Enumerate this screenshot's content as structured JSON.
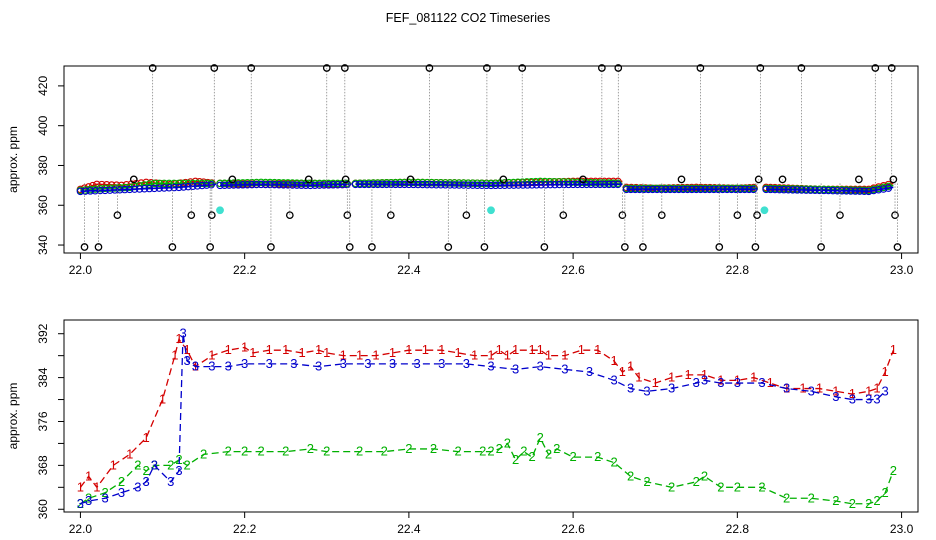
{
  "chart_data": {
    "title": "FEF_081122  CO2 Timeseries",
    "panels": [
      {
        "type": "scatter",
        "ylabel": "approx. ppm",
        "xlim": [
          21.98,
          23.02
        ],
        "ylim": [
          336,
          430
        ],
        "xticks": [
          22.0,
          22.2,
          22.4,
          22.6,
          22.8,
          23.0
        ],
        "xtick_labels": [
          "22.0",
          "22.2",
          "22.4",
          "22.6",
          "22.8",
          "23.0"
        ],
        "yticks": [
          340,
          360,
          380,
          400,
          420
        ],
        "ytick_labels": [
          "340",
          "360",
          "380",
          "400",
          "420"
        ],
        "series": [
          {
            "name": "1",
            "color": "#d40000",
            "segments": [
              {
                "x": [
                  22.0,
                  22.02,
                  22.05,
                  22.08,
                  22.11,
                  22.14,
                  22.165
                ],
                "y": [
                  368,
                  370.5,
                  370,
                  371.5,
                  370.5,
                  372,
                  371
                ]
              },
              {
                "x": [
                  22.17,
                  22.22,
                  22.28,
                  22.32,
                  22.33
                ],
                "y": [
                  371,
                  370.5,
                  371,
                  370.5,
                  371
                ]
              },
              {
                "x": [
                  22.335,
                  22.4,
                  22.5,
                  22.6,
                  22.66
                ],
                "y": [
                  371,
                  371.5,
                  371,
                  372,
                  372
                ]
              },
              {
                "x": [
                  22.665,
                  22.7,
                  22.75,
                  22.8,
                  22.825
                ],
                "y": [
                  369,
                  368.5,
                  369,
                  368.5,
                  369
                ]
              },
              {
                "x": [
                  22.835,
                  22.9,
                  22.96,
                  22.99
                ],
                "y": [
                  369,
                  368,
                  368,
                  371
                ]
              }
            ]
          },
          {
            "name": "2",
            "color": "#00b000",
            "segments": [
              {
                "x": [
                  22.0,
                  22.03,
                  22.06,
                  22.09,
                  22.12,
                  22.165
                ],
                "y": [
                  367.5,
                  368.5,
                  369,
                  371,
                  371,
                  371
                ]
              },
              {
                "x": [
                  22.17,
                  22.22,
                  22.28,
                  22.33
                ],
                "y": [
                  371,
                  371.5,
                  371,
                  371
                ]
              },
              {
                "x": [
                  22.335,
                  22.4,
                  22.5,
                  22.56,
                  22.66
                ],
                "y": [
                  371,
                  371.5,
                  371,
                  372,
                  371
                ]
              },
              {
                "x": [
                  22.665,
                  22.75,
                  22.825
                ],
                "y": [
                  368.5,
                  368.5,
                  368.5
                ]
              },
              {
                "x": [
                  22.835,
                  22.9,
                  22.96,
                  22.99
                ],
                "y": [
                  368.5,
                  368,
                  367.5,
                  370
                ]
              }
            ]
          },
          {
            "name": "3",
            "color": "#0000cc",
            "segments": [
              {
                "x": [
                  22.0,
                  22.03,
                  22.06,
                  22.09,
                  22.12,
                  22.165
                ],
                "y": [
                  367,
                  367.5,
                  368,
                  368.5,
                  369,
                  370.5
                ]
              },
              {
                "x": [
                  22.17,
                  22.22,
                  22.28,
                  22.33
                ],
                "y": [
                  370,
                  370.5,
                  370,
                  370.5
                ]
              },
              {
                "x": [
                  22.335,
                  22.4,
                  22.5,
                  22.6,
                  22.66
                ],
                "y": [
                  370.5,
                  370.5,
                  370,
                  370.5,
                  370.5
                ]
              },
              {
                "x": [
                  22.665,
                  22.75,
                  22.825
                ],
                "y": [
                  368,
                  368,
                  368
                ]
              },
              {
                "x": [
                  22.835,
                  22.9,
                  22.96,
                  22.99
                ],
                "y": [
                  368,
                  367.5,
                  367,
                  369
                ]
              }
            ]
          },
          {
            "name": "calibration",
            "color": "#000000",
            "points": [
              [
                22.005,
                339
              ],
              [
                22.022,
                339
              ],
              [
                22.045,
                355
              ],
              [
                22.065,
                373
              ],
              [
                22.088,
                429
              ],
              [
                22.112,
                339
              ],
              [
                22.135,
                355
              ],
              [
                22.158,
                339
              ],
              [
                22.163,
                429
              ],
              [
                22.16,
                355
              ],
              [
                22.185,
                373
              ],
              [
                22.208,
                429
              ],
              [
                22.232,
                339
              ],
              [
                22.255,
                355
              ],
              [
                22.278,
                373
              ],
              [
                22.3,
                429
              ],
              [
                22.322,
                429
              ],
              [
                22.323,
                373
              ],
              [
                22.325,
                355
              ],
              [
                22.328,
                339
              ],
              [
                22.355,
                339
              ],
              [
                22.378,
                355
              ],
              [
                22.402,
                373
              ],
              [
                22.425,
                429
              ],
              [
                22.448,
                339
              ],
              [
                22.47,
                355
              ],
              [
                22.492,
                339
              ],
              [
                22.495,
                429
              ],
              [
                22.515,
                373
              ],
              [
                22.538,
                429
              ],
              [
                22.565,
                339
              ],
              [
                22.588,
                355
              ],
              [
                22.612,
                373
              ],
              [
                22.635,
                429
              ],
              [
                22.655,
                429
              ],
              [
                22.66,
                355
              ],
              [
                22.663,
                339
              ],
              [
                22.685,
                339
              ],
              [
                22.708,
                355
              ],
              [
                22.732,
                373
              ],
              [
                22.755,
                429
              ],
              [
                22.778,
                339
              ],
              [
                22.8,
                355
              ],
              [
                22.822,
                339
              ],
              [
                22.824,
                355
              ],
              [
                22.826,
                373
              ],
              [
                22.828,
                429
              ],
              [
                22.855,
                373
              ],
              [
                22.878,
                429
              ],
              [
                22.902,
                339
              ],
              [
                22.925,
                355
              ],
              [
                22.948,
                373
              ],
              [
                22.968,
                429
              ],
              [
                22.988,
                429
              ],
              [
                22.99,
                373
              ],
              [
                22.992,
                355
              ],
              [
                22.995,
                339
              ]
            ]
          },
          {
            "name": "reference",
            "color": "#40e0d0",
            "points": [
              [
                22.17,
                357.5
              ],
              [
                22.5,
                357.5
              ],
              [
                22.833,
                357.5
              ]
            ]
          }
        ]
      },
      {
        "type": "line",
        "ylabel": "approx. ppm",
        "xlim": [
          21.98,
          23.02
        ],
        "ylim": [
          359.5,
          394.5
        ],
        "xticks": [
          22.0,
          22.2,
          22.4,
          22.6,
          22.8,
          23.0
        ],
        "xtick_labels": [
          "22.0",
          "22.2",
          "22.4",
          "22.6",
          "22.8",
          "23.0"
        ],
        "yticks": [
          360,
          364,
          368,
          372,
          376,
          380,
          384,
          388,
          392
        ],
        "ytick_labels": [
          "360",
          "364",
          "368",
          "372",
          "376",
          "380",
          "384",
          "388",
          "392"
        ],
        "series": [
          {
            "name": "1",
            "color": "#d40000",
            "x": [
              22.0,
              22.01,
              22.02,
              22.04,
              22.06,
              22.08,
              22.1,
              22.115,
              22.12,
              22.13,
              22.14,
              22.16,
              22.18,
              22.2,
              22.21,
              22.23,
              22.25,
              22.27,
              22.29,
              22.3,
              22.32,
              22.34,
              22.36,
              22.38,
              22.4,
              22.42,
              22.44,
              22.46,
              22.48,
              22.5,
              22.51,
              22.52,
              22.53,
              22.55,
              22.56,
              22.57,
              22.59,
              22.61,
              22.63,
              22.65,
              22.66,
              22.67,
              22.68,
              22.7,
              22.72,
              22.74,
              22.76,
              22.78,
              22.8,
              22.82,
              22.84,
              22.86,
              22.88,
              22.9,
              22.92,
              22.94,
              22.96,
              22.97,
              22.98,
              22.99
            ],
            "y": [
              364,
              366,
              364,
              368,
              370,
              373,
              380,
              388,
              391,
              389,
              386,
              388,
              389,
              389.5,
              388.5,
              389,
              389,
              388.5,
              389,
              388.5,
              388,
              388,
              388,
              388.5,
              389,
              389,
              389,
              388.5,
              388,
              388,
              389,
              388,
              389,
              389,
              389,
              388,
              388,
              389,
              389,
              387,
              385,
              386,
              384,
              383,
              384,
              384.5,
              384.5,
              383.5,
              383.5,
              384,
              383,
              382,
              382,
              382,
              381.5,
              381,
              381.5,
              382,
              385,
              389
            ]
          },
          {
            "name": "2",
            "color": "#00b000",
            "x": [
              22.0,
              22.01,
              22.03,
              22.05,
              22.07,
              22.08,
              22.09,
              22.11,
              22.12,
              22.13,
              22.15,
              22.18,
              22.2,
              22.22,
              22.25,
              22.28,
              22.3,
              22.34,
              22.37,
              22.4,
              22.43,
              22.46,
              22.49,
              22.5,
              22.51,
              22.52,
              22.53,
              22.54,
              22.55,
              22.56,
              22.57,
              22.58,
              22.6,
              22.63,
              22.65,
              22.67,
              22.69,
              22.72,
              22.75,
              22.76,
              22.78,
              22.8,
              22.83,
              22.86,
              22.89,
              22.92,
              22.94,
              22.96,
              22.97,
              22.98,
              22.99
            ],
            "y": [
              361,
              362,
              363,
              365,
              368,
              367,
              368,
              368,
              369,
              368,
              370,
              370.5,
              370.5,
              370.5,
              370.5,
              371,
              370.5,
              370.5,
              370.5,
              371,
              371,
              370.5,
              370.5,
              370.5,
              371,
              372,
              369,
              370.5,
              369.5,
              373,
              370,
              371,
              369.5,
              369.5,
              368.5,
              366,
              365,
              364,
              365,
              366,
              364,
              364,
              364,
              362,
              362,
              361.5,
              361,
              361,
              361.5,
              363,
              367
            ]
          },
          {
            "name": "3",
            "color": "#0000cc",
            "x": [
              22.0,
              22.01,
              22.03,
              22.05,
              22.07,
              22.08,
              22.09,
              22.11,
              22.12,
              22.125,
              22.13,
              22.14,
              22.16,
              22.18,
              22.2,
              22.23,
              22.26,
              22.29,
              22.32,
              22.35,
              22.38,
              22.41,
              22.44,
              22.47,
              22.5,
              22.53,
              22.56,
              22.59,
              22.62,
              22.65,
              22.67,
              22.69,
              22.72,
              22.75,
              22.76,
              22.78,
              22.8,
              22.83,
              22.86,
              22.89,
              22.92,
              22.94,
              22.96,
              22.97,
              22.98
            ],
            "y": [
              361,
              361.5,
              362,
              363,
              364,
              365,
              368,
              365,
              367,
              392,
              387,
              386,
              386,
              386,
              386.5,
              386.5,
              386.5,
              386,
              386.5,
              386.5,
              386.5,
              386.5,
              386.5,
              386.5,
              386,
              385.5,
              386,
              385.5,
              385,
              383.5,
              382,
              381.5,
              382,
              383,
              383.5,
              383,
              383,
              383,
              382,
              381.5,
              380.5,
              380,
              380,
              380,
              381.5
            ]
          }
        ]
      }
    ]
  }
}
